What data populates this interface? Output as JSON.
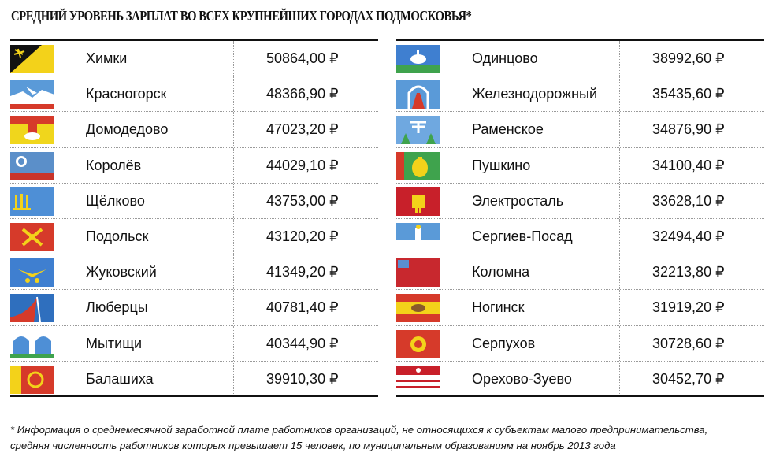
{
  "title": "СРЕДНИЙ УРОВЕНЬ ЗАРПЛАТ ВО ВСЕХ КРУПНЕЙШИХ ГОРОДАХ ПОДМОСКОВЬЯ*",
  "left_column": [
    {
      "city": "Химки",
      "salary": "50864,00 ₽",
      "flag": "khimki-flag"
    },
    {
      "city": "Красногорск",
      "salary": "48366,90 ₽",
      "flag": "krasnogorsk-flag"
    },
    {
      "city": "Домодедово",
      "salary": "47023,20 ₽",
      "flag": "domodedovo-flag"
    },
    {
      "city": "Королёв",
      "salary": "44029,10 ₽",
      "flag": "korolev-flag"
    },
    {
      "city": "Щёлково",
      "salary": "43753,00 ₽",
      "flag": "shchelkovo-flag"
    },
    {
      "city": "Подольск",
      "salary": "43120,20 ₽",
      "flag": "podolsk-flag"
    },
    {
      "city": "Жуковский",
      "salary": "41349,20 ₽",
      "flag": "zhukovsky-flag"
    },
    {
      "city": "Люберцы",
      "salary": "40781,40 ₽",
      "flag": "lyubertsy-flag"
    },
    {
      "city": "Мытищи",
      "salary": "40344,90 ₽",
      "flag": "mytishchi-flag"
    },
    {
      "city": "Балашиха",
      "salary": "39910,30 ₽",
      "flag": "balashikha-flag"
    }
  ],
  "right_column": [
    {
      "city": "Одинцово",
      "salary": "38992,60 ₽",
      "flag": "odintsovo-flag"
    },
    {
      "city": "Железнодорожный",
      "salary": "35435,60 ₽",
      "flag": "zheleznodorozhny-flag"
    },
    {
      "city": "Раменское",
      "salary": "34876,90 ₽",
      "flag": "ramenskoye-flag"
    },
    {
      "city": "Пушкино",
      "salary": "34100,40 ₽",
      "flag": "pushkino-flag"
    },
    {
      "city": "Электросталь",
      "salary": "33628,10 ₽",
      "flag": "elektrostal-flag"
    },
    {
      "city": "Сергиев-Посад",
      "salary": "32494,40 ₽",
      "flag": "sergiev-posad-flag"
    },
    {
      "city": "Коломна",
      "salary": "32213,80 ₽",
      "flag": "kolomna-flag"
    },
    {
      "city": "Ногинск",
      "salary": "31919,20 ₽",
      "flag": "noginsk-flag"
    },
    {
      "city": "Серпухов",
      "salary": "30728,60 ₽",
      "flag": "serpukhov-flag"
    },
    {
      "city": "Орехово-Зуево",
      "salary": "30452,70 ₽",
      "flag": "orekhovo-zuevo-flag"
    }
  ],
  "footnote": {
    "line1": "* Информация о среднемесячной заработной плате работников организаций, не относящихся к субъектам малого предпринимательства,",
    "line2": "средняя численность работников которых превышает 15 человек, по муниципальным образованиям на ноябрь 2013 года"
  }
}
